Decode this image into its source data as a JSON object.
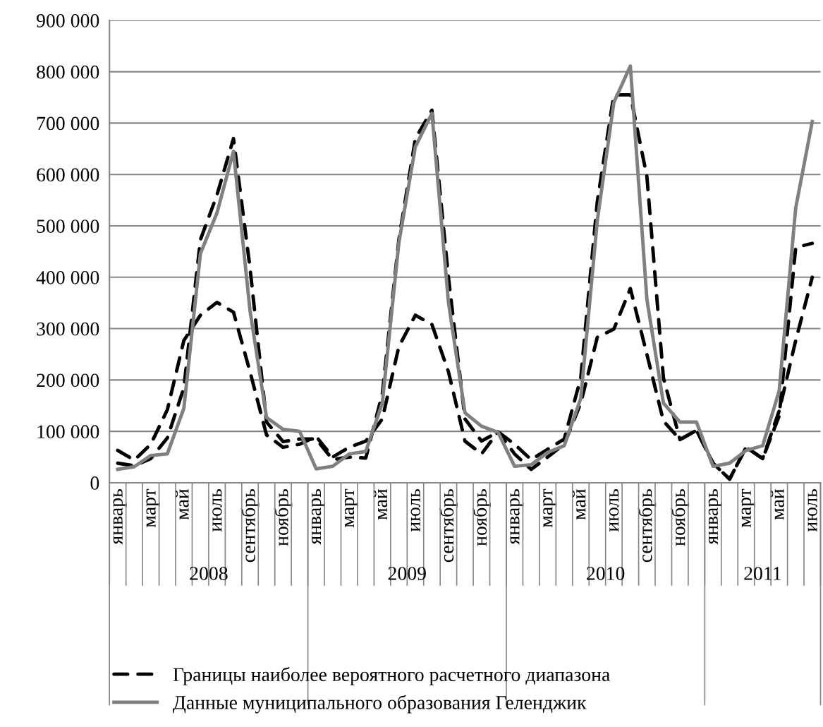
{
  "chart_data": {
    "type": "line",
    "categories": [
      "январь",
      null,
      "март",
      null,
      "май",
      null,
      "июль",
      null,
      "сентябрь",
      null,
      "ноябрь",
      null,
      "январь",
      null,
      "март",
      null,
      "май",
      null,
      "июль",
      null,
      "сентябрь",
      null,
      "ноябрь",
      null,
      "январь",
      null,
      "март",
      null,
      "май",
      null,
      "июль",
      null,
      "сентябрь",
      null,
      "ноябрь",
      null,
      "январь",
      null,
      "март",
      null,
      "май",
      null,
      "июль"
    ],
    "series": [
      {
        "name": "Границы наиболее вероятного расчетного диапазона",
        "color": "#000000",
        "line_style": "dashed",
        "values": [
          63000,
          44000,
          75000,
          142000,
          277000,
          326000,
          351000,
          332000,
          216000,
          93000,
          69000,
          75000,
          90000,
          50000,
          69000,
          81000,
          124000,
          265000,
          326000,
          308000,
          216000,
          81000,
          56000,
          99000,
          56000,
          26000,
          50000,
          75000,
          155000,
          283000,
          299000,
          378000,
          250000,
          120000,
          84000,
          102000,
          38000,
          7000,
          69000,
          47000,
          140000,
          277000,
          400000
        ]
      },
      {
        "color": "#000000",
        "line_style": "dashed",
        "values": [
          38000,
          33000,
          47000,
          87000,
          185000,
          473000,
          560000,
          670000,
          418000,
          118000,
          80000,
          85000,
          85000,
          45000,
          50000,
          48000,
          173000,
          473000,
          670000,
          725000,
          400000,
          124000,
          81000,
          99000,
          75000,
          45000,
          65000,
          85000,
          204000,
          547000,
          755000,
          755000,
          596000,
          204000,
          84000,
          102000,
          38000,
          7000,
          69000,
          47000,
          130000,
          458000,
          466000
        ]
      },
      {
        "name": "Данные муниципального образования Геленджик",
        "color": "#808080",
        "line_style": "solid",
        "values": [
          26000,
          31000,
          53000,
          56000,
          145000,
          446000,
          525000,
          645000,
          335000,
          127000,
          104000,
          100000,
          27000,
          32000,
          56000,
          61000,
          155000,
          467000,
          654000,
          719000,
          351000,
          136000,
          110000,
          98000,
          32000,
          35000,
          59000,
          72000,
          164000,
          510000,
          740000,
          811000,
          357000,
          155000,
          118000,
          118000,
          32000,
          38000,
          63000,
          72000,
          179000,
          535000,
          703000
        ]
      }
    ],
    "ylim": [
      0,
      900000
    ],
    "yticks": [
      {
        "value": 0,
        "label": "0"
      },
      {
        "value": 100000,
        "label": "100 000"
      },
      {
        "value": 200000,
        "label": "200 000"
      },
      {
        "value": 300000,
        "label": "300 000"
      },
      {
        "value": 400000,
        "label": "400 000"
      },
      {
        "value": 500000,
        "label": "500 000"
      },
      {
        "value": 600000,
        "label": "600 000"
      },
      {
        "value": 700000,
        "label": "700 000"
      },
      {
        "value": 800000,
        "label": "800 000"
      },
      {
        "value": 900000,
        "label": "900 000"
      }
    ],
    "grid": "y",
    "legend": "bottom",
    "marker": "none",
    "annotations": [
      "2008",
      "2009",
      "2010",
      "2011"
    ]
  }
}
